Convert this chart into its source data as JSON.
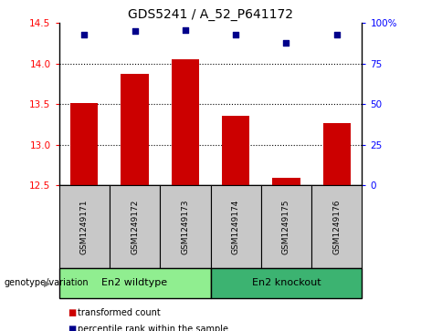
{
  "title": "GDS5241 / A_52_P641172",
  "samples": [
    "GSM1249171",
    "GSM1249172",
    "GSM1249173",
    "GSM1249174",
    "GSM1249175",
    "GSM1249176"
  ],
  "transformed_counts": [
    13.52,
    13.88,
    14.06,
    13.36,
    12.59,
    13.27
  ],
  "percentile_ranks": [
    93,
    95,
    96,
    93,
    88,
    93
  ],
  "ylim_left": [
    12.5,
    14.5
  ],
  "ylim_right": [
    0,
    100
  ],
  "yticks_left": [
    12.5,
    13.0,
    13.5,
    14.0,
    14.5
  ],
  "yticks_right": [
    0,
    25,
    50,
    75,
    100
  ],
  "ytick_labels_right": [
    "0",
    "25",
    "50",
    "75",
    "100%"
  ],
  "groups": [
    {
      "label": "En2 wildtype",
      "indices": [
        0,
        1,
        2
      ],
      "color": "#90EE90"
    },
    {
      "label": "En2 knockout",
      "indices": [
        3,
        4,
        5
      ],
      "color": "#3CB371"
    }
  ],
  "bar_color": "#CC0000",
  "dot_color": "#00008B",
  "bar_width": 0.55,
  "group_label": "genotype/variation",
  "legend_items": [
    {
      "label": "transformed count",
      "color": "#CC0000"
    },
    {
      "label": "percentile rank within the sample",
      "color": "#00008B"
    }
  ],
  "bg_color": "#C8C8C8"
}
